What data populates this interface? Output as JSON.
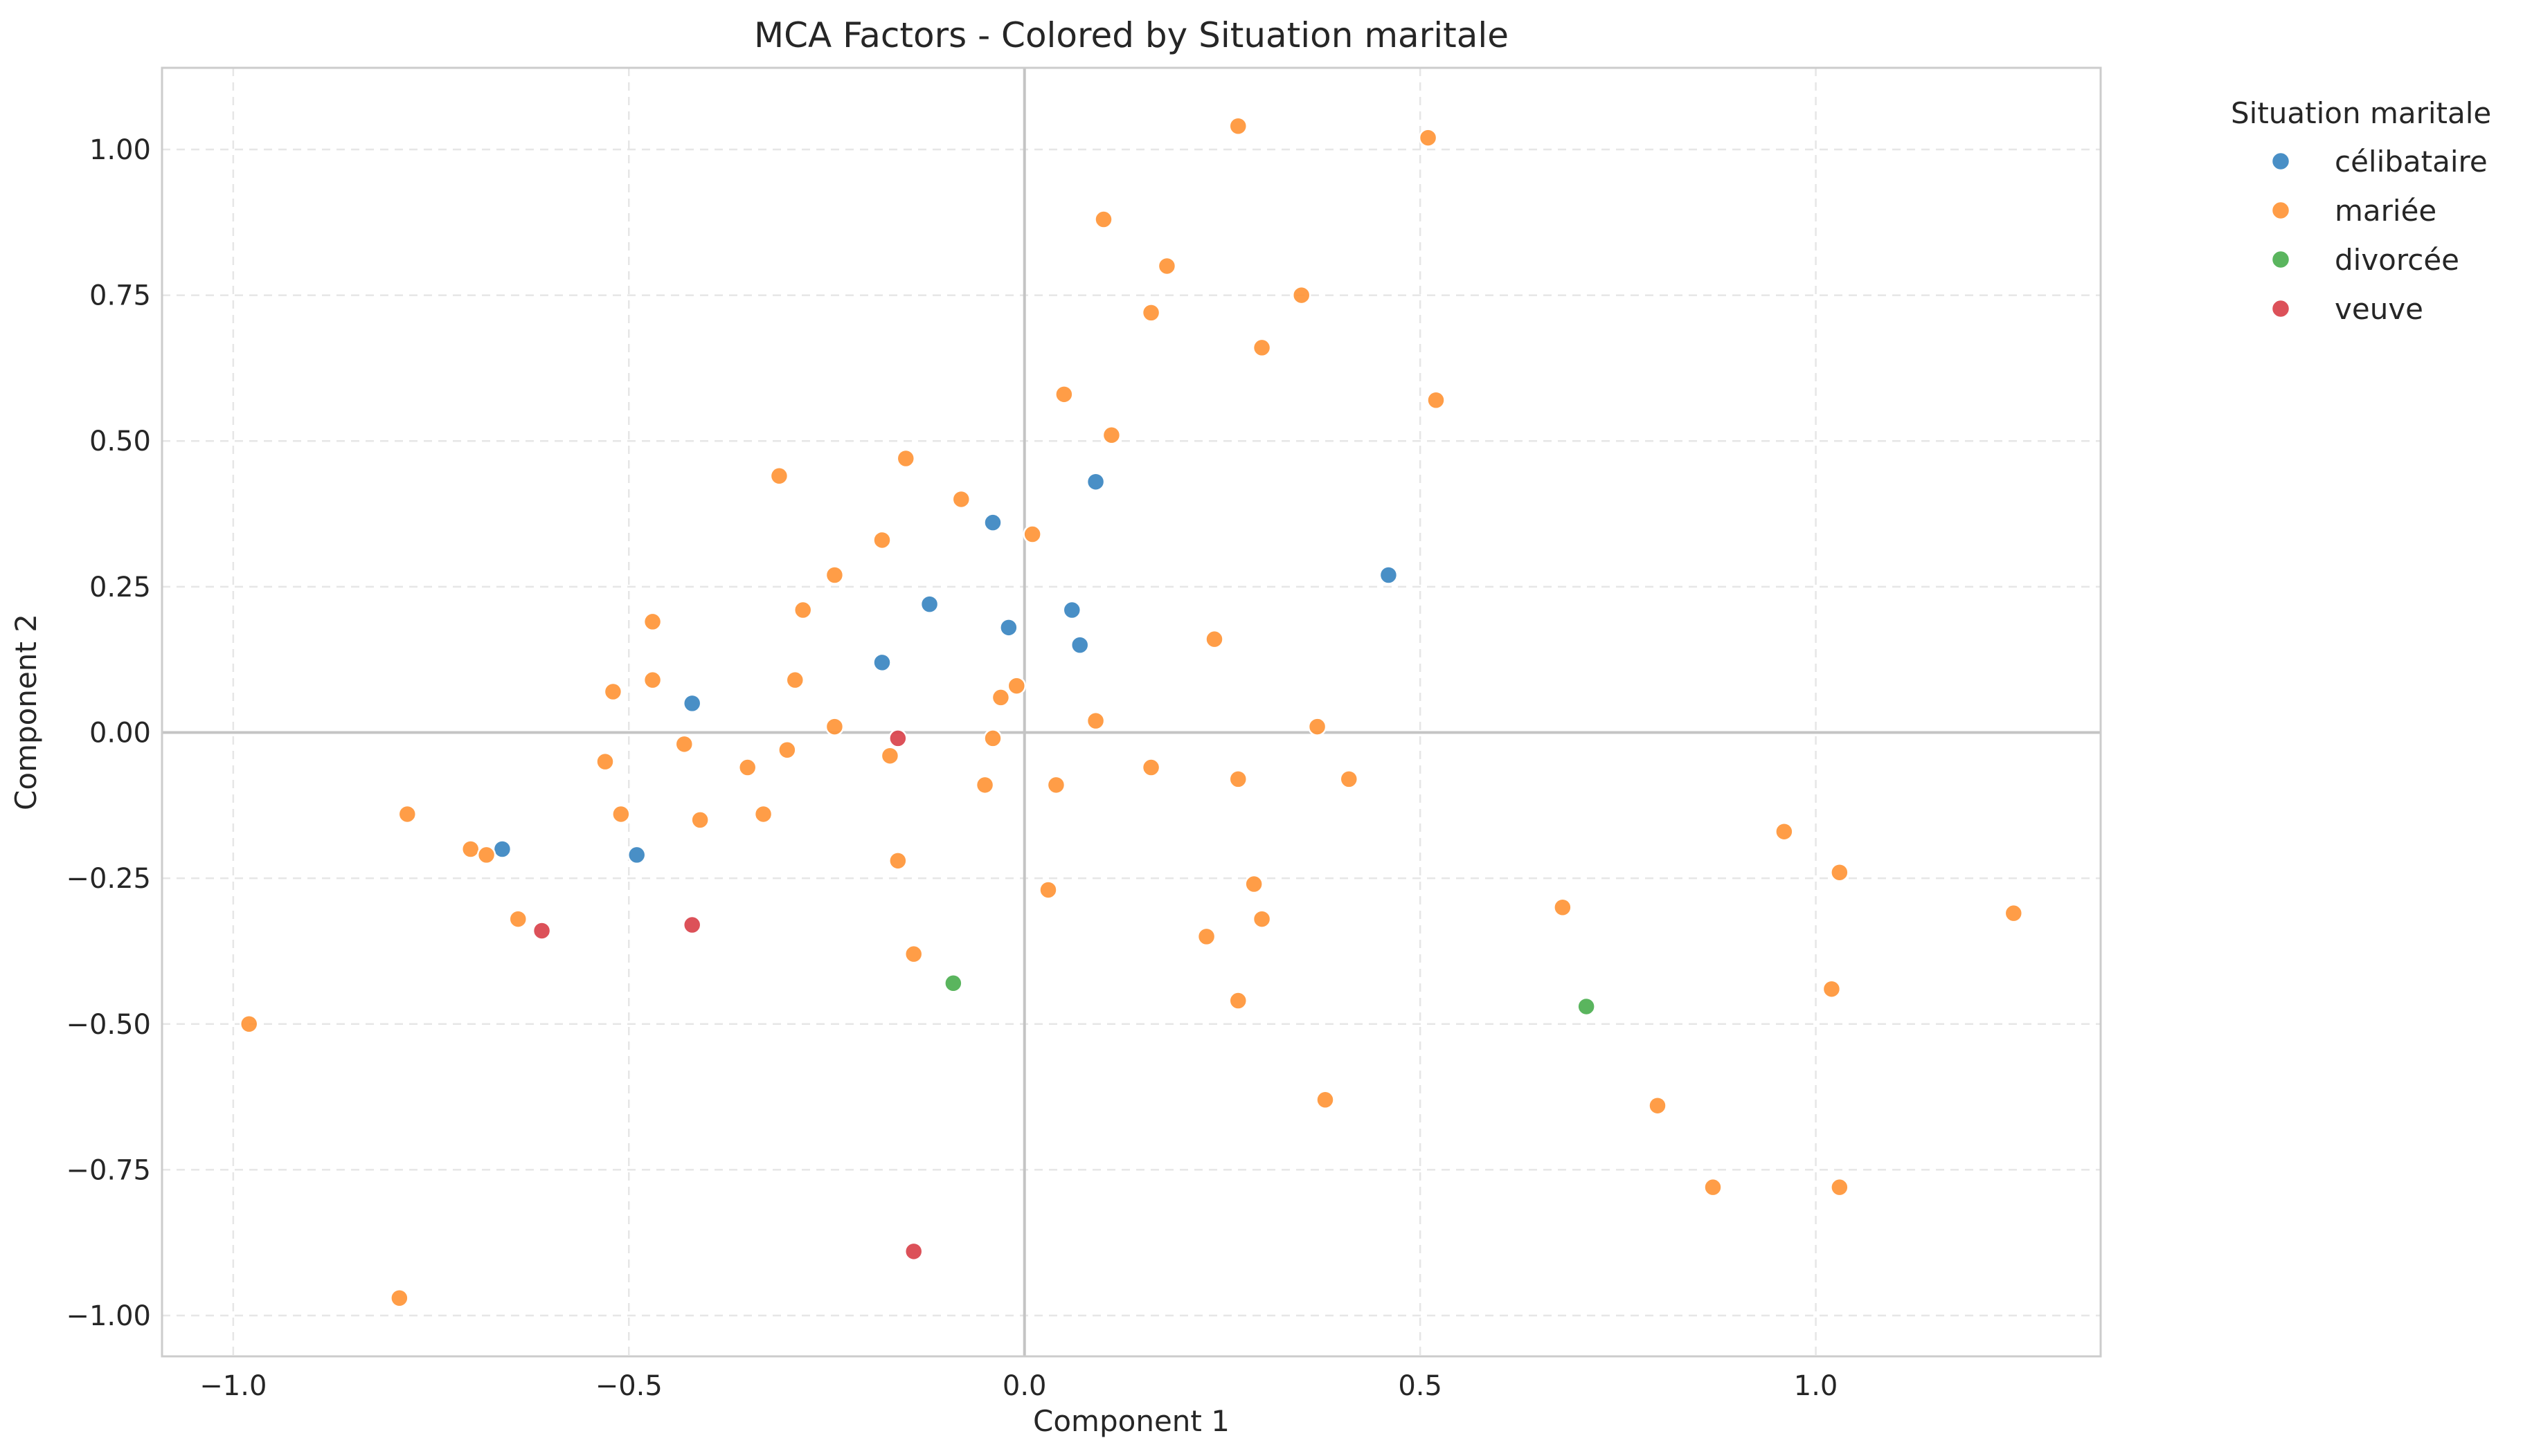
{
  "chart_data": {
    "type": "scatter",
    "title": "MCA Factors - Colored by Situation maritale",
    "xlabel": "Component 1",
    "ylabel": "Component 2",
    "xlim": [
      -1.09,
      1.36
    ],
    "ylim": [
      -1.07,
      1.14
    ],
    "x_ticks": [
      -1.0,
      -0.5,
      0.0,
      0.5,
      1.0
    ],
    "x_tick_labels": [
      "−1.0",
      "−0.5",
      "0.0",
      "0.5",
      "1.0"
    ],
    "y_ticks": [
      1.0,
      0.75,
      0.5,
      0.25,
      0.0,
      -0.25,
      -0.5,
      -0.75,
      -1.0
    ],
    "y_tick_labels": [
      "1.00",
      "0.75",
      "0.50",
      "0.25",
      "0.00",
      "−0.25",
      "−0.50",
      "−0.75",
      "−1.00"
    ],
    "grid": true,
    "zero_lines": true,
    "legend": {
      "title": "Situation maritale",
      "placement": "outside-right-top"
    },
    "series": [
      {
        "name": "célibataire",
        "color": "#3a86c1",
        "points": [
          {
            "x": -0.66,
            "y": -0.2
          },
          {
            "x": -0.49,
            "y": -0.21
          },
          {
            "x": -0.42,
            "y": 0.05
          },
          {
            "x": -0.18,
            "y": 0.12
          },
          {
            "x": -0.12,
            "y": 0.22
          },
          {
            "x": -0.04,
            "y": 0.36
          },
          {
            "x": -0.02,
            "y": 0.18
          },
          {
            "x": 0.06,
            "y": 0.21
          },
          {
            "x": 0.07,
            "y": 0.15
          },
          {
            "x": 0.09,
            "y": 0.43
          },
          {
            "x": 0.46,
            "y": 0.27
          }
        ]
      },
      {
        "name": "mariée",
        "color": "#ff9537",
        "points": [
          {
            "x": -0.98,
            "y": -0.5
          },
          {
            "x": -0.79,
            "y": -0.97
          },
          {
            "x": -0.78,
            "y": -0.14
          },
          {
            "x": -0.7,
            "y": -0.2
          },
          {
            "x": -0.68,
            "y": -0.21
          },
          {
            "x": -0.64,
            "y": -0.32
          },
          {
            "x": -0.53,
            "y": -0.05
          },
          {
            "x": -0.52,
            "y": 0.07
          },
          {
            "x": -0.51,
            "y": -0.14
          },
          {
            "x": -0.47,
            "y": 0.19
          },
          {
            "x": -0.47,
            "y": 0.09
          },
          {
            "x": -0.43,
            "y": -0.02
          },
          {
            "x": -0.41,
            "y": -0.15
          },
          {
            "x": -0.35,
            "y": -0.06
          },
          {
            "x": -0.33,
            "y": -0.14
          },
          {
            "x": -0.31,
            "y": 0.44
          },
          {
            "x": -0.3,
            "y": -0.03
          },
          {
            "x": -0.29,
            "y": 0.09
          },
          {
            "x": -0.28,
            "y": 0.21
          },
          {
            "x": -0.24,
            "y": 0.27
          },
          {
            "x": -0.24,
            "y": 0.01
          },
          {
            "x": -0.18,
            "y": 0.33
          },
          {
            "x": -0.17,
            "y": -0.04
          },
          {
            "x": -0.16,
            "y": -0.22
          },
          {
            "x": -0.15,
            "y": 0.47
          },
          {
            "x": -0.14,
            "y": -0.38
          },
          {
            "x": -0.08,
            "y": 0.4
          },
          {
            "x": -0.05,
            "y": -0.09
          },
          {
            "x": -0.04,
            "y": -0.01
          },
          {
            "x": -0.03,
            "y": 0.06
          },
          {
            "x": -0.01,
            "y": 0.08
          },
          {
            "x": 0.01,
            "y": 0.34
          },
          {
            "x": 0.03,
            "y": -0.27
          },
          {
            "x": 0.04,
            "y": -0.09
          },
          {
            "x": 0.05,
            "y": 0.58
          },
          {
            "x": 0.09,
            "y": 0.02
          },
          {
            "x": 0.1,
            "y": 0.88
          },
          {
            "x": 0.11,
            "y": 0.51
          },
          {
            "x": 0.16,
            "y": 0.72
          },
          {
            "x": 0.16,
            "y": -0.06
          },
          {
            "x": 0.18,
            "y": 0.8
          },
          {
            "x": 0.23,
            "y": -0.35
          },
          {
            "x": 0.24,
            "y": 0.16
          },
          {
            "x": 0.27,
            "y": 1.04
          },
          {
            "x": 0.27,
            "y": -0.08
          },
          {
            "x": 0.27,
            "y": -0.46
          },
          {
            "x": 0.29,
            "y": -0.26
          },
          {
            "x": 0.3,
            "y": -0.32
          },
          {
            "x": 0.3,
            "y": 0.66
          },
          {
            "x": 0.35,
            "y": 0.75
          },
          {
            "x": 0.37,
            "y": 0.01
          },
          {
            "x": 0.38,
            "y": -0.63
          },
          {
            "x": 0.41,
            "y": -0.08
          },
          {
            "x": 0.51,
            "y": 1.02
          },
          {
            "x": 0.52,
            "y": 0.57
          },
          {
            "x": 0.68,
            "y": -0.3
          },
          {
            "x": 0.8,
            "y": -0.64
          },
          {
            "x": 0.87,
            "y": -0.78
          },
          {
            "x": 0.96,
            "y": -0.17
          },
          {
            "x": 1.02,
            "y": -0.44
          },
          {
            "x": 1.03,
            "y": -0.24
          },
          {
            "x": 1.03,
            "y": -0.78
          },
          {
            "x": 1.25,
            "y": -0.31
          }
        ]
      },
      {
        "name": "divorcée",
        "color": "#4caf50",
        "points": [
          {
            "x": -0.09,
            "y": -0.43
          },
          {
            "x": 0.71,
            "y": -0.47
          }
        ]
      },
      {
        "name": "veuve",
        "color": "#d9424b",
        "points": [
          {
            "x": -0.61,
            "y": -0.34
          },
          {
            "x": -0.42,
            "y": -0.33
          },
          {
            "x": -0.16,
            "y": -0.01
          },
          {
            "x": -0.14,
            "y": -0.89
          }
        ]
      }
    ]
  }
}
